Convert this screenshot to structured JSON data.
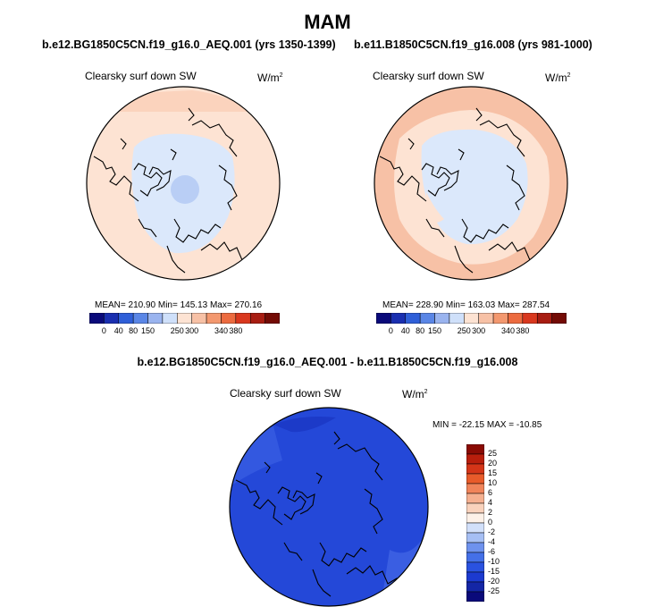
{
  "season": "MAM",
  "panels": [
    {
      "case_title": "b.e12.BG1850C5CN.f19_g16.0_AEQ.001 (yrs 1350-1399)",
      "variable": "Clearsky surf down SW",
      "units_base": "W/m",
      "units_exp": "2",
      "stats_text": "MEAN= 210.90  Min= 145.13  Max= 270.16"
    },
    {
      "case_title": "b.e11.B1850C5CN.f19_g16.008 (yrs 981-1000)",
      "variable": "Clearsky surf down SW",
      "units_base": "W/m",
      "units_exp": "2",
      "stats_text": "MEAN= 228.90  Min= 163.03  Max= 287.54"
    },
    {
      "case_title": "b.e12.BG1850C5CN.f19_g16.0_AEQ.001 - b.e11.B1850C5CN.f19_g16.008",
      "variable": "Clearsky surf down SW",
      "units_base": "W/m",
      "units_exp": "2",
      "stats_text": "MIN = -22.15 MAX = -10.85"
    }
  ],
  "colors": {
    "abs_scale": [
      "#0a0a7a",
      "#1a2fb0",
      "#2f5fd8",
      "#5a86e6",
      "#9ab4ef",
      "#cfe0fa",
      "#fde3d3",
      "#f7c1a6",
      "#f3986f",
      "#ec6b3f",
      "#d9381e",
      "#a81d12",
      "#730b05"
    ],
    "diff_scale": [
      "#0a0a7a",
      "#1426a6",
      "#1c3ad0",
      "#2a52e0",
      "#4470e8",
      "#6e92ee",
      "#a6bff4",
      "#d2e0fa",
      "#fdf1e8",
      "#f9d2bc",
      "#f5b090",
      "#f0845a",
      "#e85b2a",
      "#d43518",
      "#b81e0c",
      "#8a0b04"
    ],
    "map_blue_light": "#dbe8fb",
    "map_blue_mid": "#c4d6f6",
    "map_peach": "#fde3d3",
    "map_salmon": "#f7c1a6",
    "diff_fill": "#2448d8",
    "diff_fill_dark": "#1c3ac8"
  },
  "chart_data": [
    {
      "type": "heatmap",
      "title": "Clearsky surf down SW",
      "subtitle": "b.e12.BG1850C5CN.f19_g16.0_AEQ.001 (yrs 1350-1399)",
      "units": "W/m2",
      "projection": "north polar stereographic",
      "mean": 210.9,
      "min": 145.13,
      "max": 270.16,
      "colorbar_ticks": [
        "0",
        "40",
        "80",
        "150",
        "250",
        "300",
        "340",
        "380"
      ]
    },
    {
      "type": "heatmap",
      "title": "Clearsky surf down SW",
      "subtitle": "b.e11.B1850C5CN.f19_g16.008 (yrs 981-1000)",
      "units": "W/m2",
      "projection": "north polar stereographic",
      "mean": 228.9,
      "min": 163.03,
      "max": 287.54,
      "colorbar_ticks": [
        "0",
        "40",
        "80",
        "150",
        "250",
        "300",
        "340",
        "380"
      ]
    },
    {
      "type": "heatmap",
      "title": "Clearsky surf down SW",
      "subtitle": "b.e12.BG1850C5CN.f19_g16.0_AEQ.001 - b.e11.B1850C5CN.f19_g16.008",
      "units": "W/m2",
      "projection": "north polar stereographic",
      "min": -22.15,
      "max": -10.85,
      "colorbar_ticks": [
        "25",
        "20",
        "15",
        "10",
        "6",
        "4",
        "2",
        "0",
        "-2",
        "-4",
        "-6",
        "-10",
        "-15",
        "-20",
        "-25"
      ]
    }
  ]
}
